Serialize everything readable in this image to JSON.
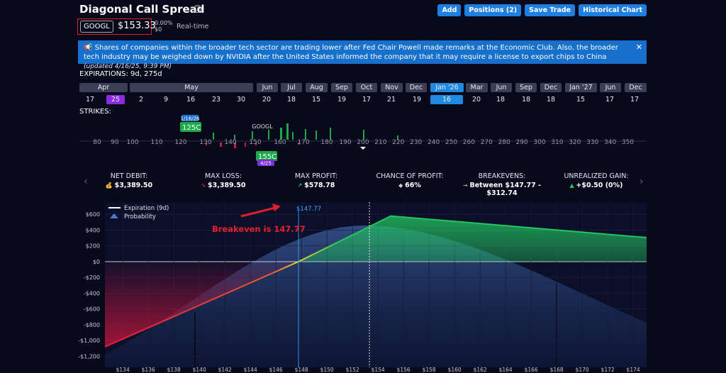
{
  "header": {
    "title": "Diagonal Call Spread",
    "buttons": [
      "Add",
      "Positions (2)",
      "Save Trade",
      "Historical Chart"
    ]
  },
  "quote": {
    "symbol": "GOOGL",
    "price": "$153.33",
    "change_pct": "0.00%",
    "change": "$0",
    "feed": "Real-time"
  },
  "banner": {
    "text": "Shares of companies within the broader tech sector are trading lower after Fed Chair Powell made remarks at the Economic Club. Also, the broader tech industry may be weighed down by NVIDIA after the United States informed the company that it may require a license to export chips to China",
    "updated": "(updated 4/16/25, 9:39 PM)"
  },
  "expirations": {
    "label": "EXPIRATIONS: 9d, 275d",
    "months": [
      "Apr",
      "May",
      "Jun",
      "Jul",
      "Aug",
      "Sep",
      "Oct",
      "Nov",
      "Dec",
      "Jan '26",
      "Mar",
      "Jun",
      "Sep",
      "Dec",
      "Jan '27",
      "Jun",
      "Dec"
    ],
    "dates": [
      17,
      25,
      2,
      9,
      16,
      23,
      30,
      20,
      18,
      15,
      19,
      17,
      21,
      19,
      16,
      20,
      18,
      18,
      18,
      15,
      17,
      17
    ]
  },
  "strikes": {
    "label": "STRIKES:",
    "symbol": "GOOGL",
    "ticks": [
      80,
      90,
      100,
      110,
      120,
      130,
      140,
      150,
      160,
      170,
      180,
      190,
      200,
      210,
      220,
      230,
      240,
      250,
      260,
      270,
      280,
      290,
      300,
      310,
      320,
      330,
      340,
      350
    ],
    "legs": [
      {
        "label": "125C",
        "expiry": "1/16/26"
      },
      {
        "label": "155C",
        "expiry": "4/25"
      }
    ]
  },
  "metrics": [
    {
      "label": "NET DEBIT:",
      "value": "$3,389.50"
    },
    {
      "label": "MAX LOSS:",
      "value": "$3,389.50"
    },
    {
      "label": "MAX PROFIT:",
      "value": "$578.78"
    },
    {
      "label": "CHANCE OF PROFIT:",
      "value": "66%"
    },
    {
      "label": "BREAKEVENS:",
      "value": "Between $147.77 - $312.74"
    },
    {
      "label": "UNREALIZED GAIN:",
      "value": "+$0.50 (0%)"
    }
  ],
  "chart_data": {
    "type": "line",
    "xlim": [
      132.6,
      175.05
    ],
    "ylim": [
      -1340,
      755
    ],
    "xticks": [
      {
        "value": 134,
        "label": "$134"
      },
      {
        "value": 136,
        "label": "$136"
      },
      {
        "value": 138,
        "label": "$138"
      },
      {
        "value": 140,
        "label": "$140"
      },
      {
        "value": 142,
        "label": "$142"
      },
      {
        "value": 144,
        "label": "$144"
      },
      {
        "value": 146,
        "label": "$146"
      },
      {
        "value": 148,
        "label": "$148"
      },
      {
        "value": 150,
        "label": "$150"
      },
      {
        "value": 152,
        "label": "$152"
      },
      {
        "value": 154,
        "label": "$154"
      },
      {
        "value": 156,
        "label": "$156"
      },
      {
        "value": 158,
        "label": "$158"
      },
      {
        "value": 160,
        "label": "$160"
      },
      {
        "value": 162,
        "label": "$162"
      },
      {
        "value": 164,
        "label": "$164"
      },
      {
        "value": 166,
        "label": "$166"
      },
      {
        "value": 168,
        "label": "$168"
      },
      {
        "value": 170,
        "label": "$170"
      },
      {
        "value": 172,
        "label": "$172"
      },
      {
        "value": 174,
        "label": "$174"
      }
    ],
    "yticks": [
      {
        "value": 600,
        "label": "$600"
      },
      {
        "value": 400,
        "label": "$400"
      },
      {
        "value": 200,
        "label": "$200"
      },
      {
        "value": 0,
        "label": "$0"
      },
      {
        "value": -200,
        "label": "-$200"
      },
      {
        "value": -400,
        "label": "-$400"
      },
      {
        "value": -600,
        "label": "-$600"
      },
      {
        "value": -800,
        "label": "-$800"
      },
      {
        "value": -1000,
        "label": "-$1,000"
      },
      {
        "value": -1200,
        "label": "-$1,200"
      }
    ],
    "x": [
      132.6,
      147.77,
      155,
      175.05
    ],
    "series": [
      {
        "name": "Expiration (9d)",
        "color": "#ffffff",
        "values": [
          -1080,
          0,
          578.78,
          305
        ]
      }
    ],
    "loss_color": "#e3173e",
    "profit_color": "#22c55e",
    "probability_label": "Probability",
    "breakeven": {
      "value": 147.77,
      "label": "$147.77"
    },
    "price_line": 153.33,
    "annotation": "Breakeven is 147.77",
    "grid": true
  }
}
